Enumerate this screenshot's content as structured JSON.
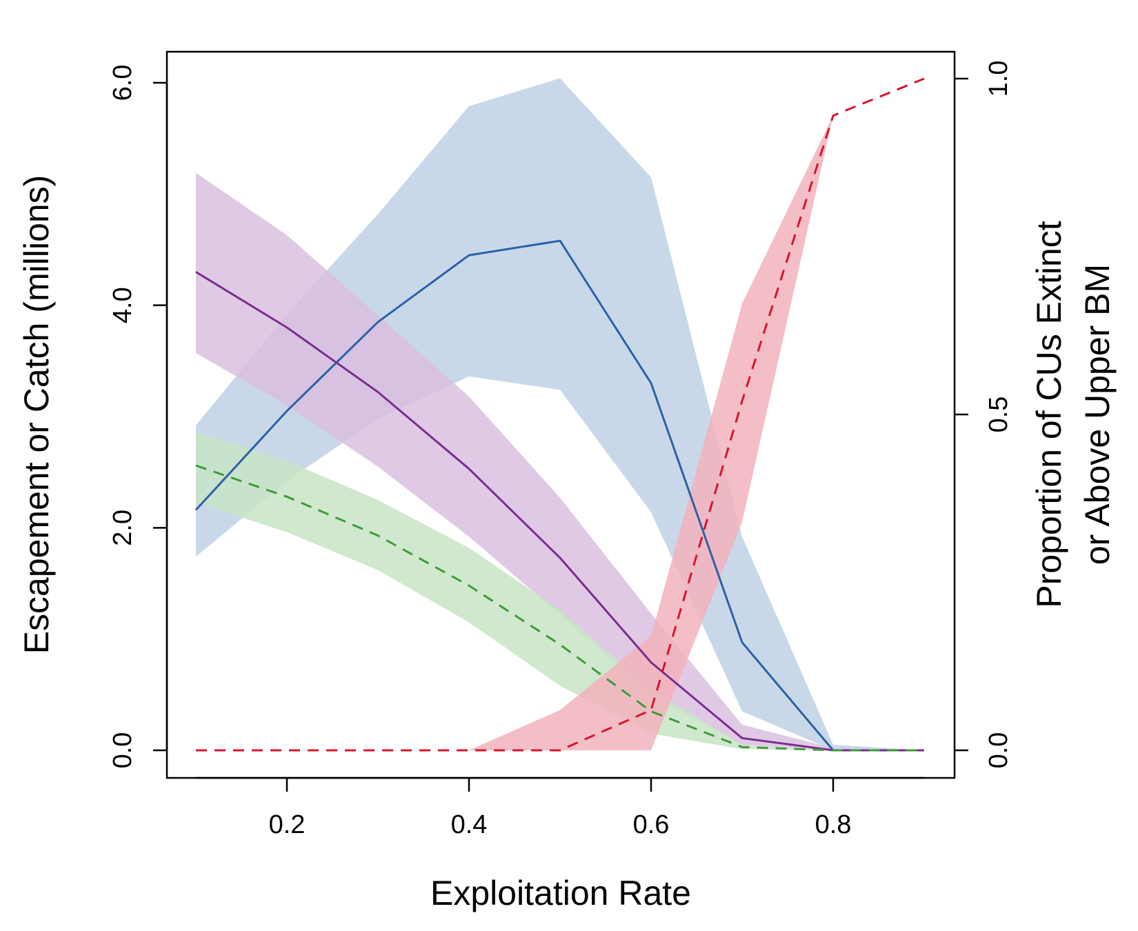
{
  "chart_data": {
    "type": "line",
    "xlabel": "Exploitation Rate",
    "ylabel": "Escapement or Catch (millions)",
    "y2label_lines": [
      "Proportion of CUs Extinct",
      "or Above Upper BM"
    ],
    "xlim": [
      0.1,
      0.9
    ],
    "ylim": [
      0,
      6
    ],
    "y2lim": [
      0,
      1
    ],
    "x_ticks": [
      0.2,
      0.4,
      0.6,
      0.8
    ],
    "x_tick_labels": [
      "0.2",
      "0.4",
      "0.6",
      "0.8"
    ],
    "y_ticks": [
      0,
      2,
      4,
      6
    ],
    "y_tick_labels": [
      "0.0",
      "2.0",
      "4.0",
      "6.0"
    ],
    "y2_ticks": [
      0,
      0.5,
      1
    ],
    "y2_tick_labels": [
      "0.0",
      "0.5",
      "1.0"
    ],
    "x": [
      0.1,
      0.2,
      0.3,
      0.4,
      0.5,
      0.6,
      0.7,
      0.8,
      0.9
    ],
    "series": [
      {
        "axis": "left",
        "color": "#2b61a6",
        "fill": "#bfd1e5",
        "dash": "solid",
        "values": [
          2.16,
          3.05,
          3.85,
          4.45,
          4.58,
          3.3,
          0.97,
          0.0,
          0.0
        ],
        "lower": [
          1.74,
          2.42,
          2.98,
          3.36,
          3.24,
          2.14,
          0.35,
          0.0,
          0.0
        ],
        "upper": [
          2.92,
          3.92,
          4.82,
          5.79,
          6.04,
          5.15,
          1.92,
          0.05,
          0.0
        ]
      },
      {
        "axis": "left",
        "color": "#7b2c8f",
        "fill": "#d9bfdf",
        "dash": "solid",
        "values": [
          4.3,
          3.8,
          3.22,
          2.53,
          1.73,
          0.79,
          0.11,
          0.0,
          0.0
        ],
        "lower": [
          3.57,
          3.1,
          2.55,
          1.92,
          1.22,
          0.5,
          0.05,
          0.0,
          0.0
        ],
        "upper": [
          5.19,
          4.63,
          3.91,
          3.18,
          2.27,
          1.23,
          0.23,
          0.02,
          0.0
        ]
      },
      {
        "axis": "left",
        "color": "#3f9a3a",
        "fill": "#c8e5c5",
        "dash": "dashed",
        "values": [
          2.56,
          2.28,
          1.93,
          1.48,
          0.95,
          0.35,
          0.03,
          0.0,
          0.0
        ],
        "lower": [
          2.23,
          1.96,
          1.62,
          1.15,
          0.58,
          0.15,
          0.01,
          0.0,
          0.0
        ],
        "upper": [
          2.86,
          2.6,
          2.25,
          1.82,
          1.26,
          0.55,
          0.05,
          0.0,
          0.0
        ]
      },
      {
        "axis": "right",
        "color": "#d9142c",
        "fill": "#f2b3bc",
        "dash": "dashed",
        "values": [
          0.0,
          0.0,
          0.0,
          0.0,
          0.0,
          0.06,
          0.52,
          0.945,
          1.0
        ],
        "lower": [
          0.0,
          0.0,
          0.0,
          0.0,
          0.0,
          0.0,
          0.34,
          0.945,
          1.0
        ],
        "upper": [
          0.0,
          0.0,
          0.0,
          0.0,
          0.06,
          0.17,
          0.665,
          0.945,
          1.0
        ]
      }
    ]
  }
}
